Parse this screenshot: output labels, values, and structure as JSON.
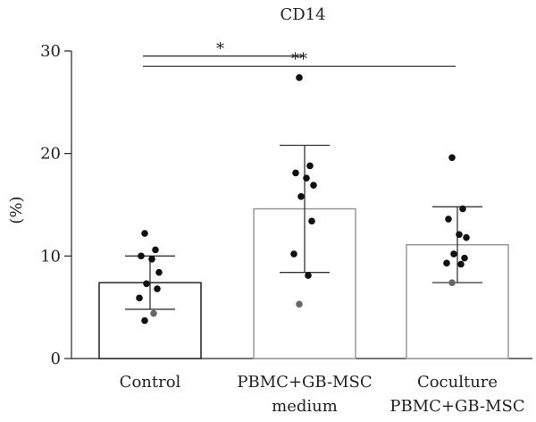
{
  "chart_data": {
    "type": "bar",
    "title": "CD14",
    "xlabel": "",
    "ylabel": "(%)",
    "ylim": [
      0,
      30
    ],
    "yticks": [
      0,
      10,
      20,
      30
    ],
    "grid": false,
    "categories": [
      [
        "Control"
      ],
      [
        "PBMC+GB-MSC",
        "medium"
      ],
      [
        "Coculture",
        "PBMC+GB-MSC"
      ]
    ],
    "values": [
      7.4,
      14.6,
      11.1
    ],
    "error_low": [
      4.8,
      8.4,
      7.4
    ],
    "error_high": [
      10.0,
      20.8,
      14.8
    ],
    "bar_edge_colors": [
      "#222222",
      "#999999",
      "#999999"
    ],
    "points": [
      [
        12.2,
        10.6,
        10.0,
        9.7,
        8.4,
        7.3,
        6.8,
        5.9,
        4.4,
        3.7
      ],
      [
        27.4,
        18.8,
        18.1,
        17.6,
        16.9,
        15.8,
        13.4,
        10.2,
        8.1,
        5.3
      ],
      [
        19.6,
        14.6,
        13.6,
        12.1,
        11.8,
        10.2,
        9.8,
        9.3,
        9.2,
        7.4
      ]
    ],
    "point_colors": [
      [
        "#111111",
        "#111111",
        "#111111",
        "#111111",
        "#111111",
        "#111111",
        "#111111",
        "#111111",
        "#666666",
        "#111111"
      ],
      [
        "#111111",
        "#111111",
        "#111111",
        "#111111",
        "#111111",
        "#111111",
        "#111111",
        "#111111",
        "#111111",
        "#666666"
      ],
      [
        "#111111",
        "#111111",
        "#111111",
        "#111111",
        "#111111",
        "#111111",
        "#111111",
        "#111111",
        "#111111",
        "#666666"
      ]
    ],
    "significance": [
      {
        "from": 0,
        "to": 1,
        "y": 29.5,
        "label": "*"
      },
      {
        "from": 0,
        "to": 2,
        "y": 28.5,
        "label": "**"
      }
    ]
  }
}
